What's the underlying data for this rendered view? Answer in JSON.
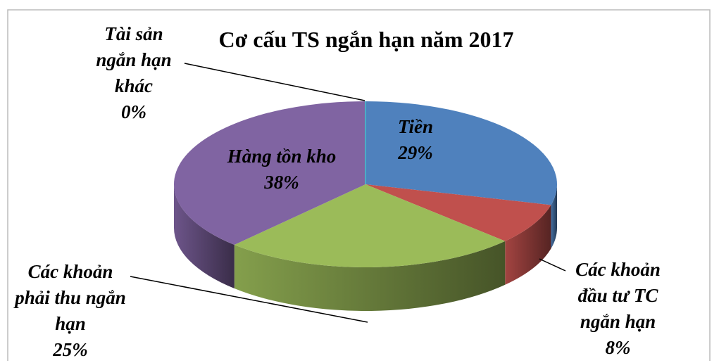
{
  "chart_data": {
    "type": "pie",
    "title": "Cơ cấu TS ngắn hạn năm 2017",
    "categories": [
      "Tiền",
      "Các khoản đầu tư TC ngắn hạn",
      "Các khoản phải thu ngắn hạn",
      "Hàng tồn kho",
      "Tài sản ngắn hạn khác"
    ],
    "values": [
      29,
      8,
      25,
      38,
      0
    ],
    "value_labels": [
      "29%",
      "8%",
      "25%",
      "38%",
      "0%"
    ],
    "colors": [
      "#4f81bd",
      "#c0504d",
      "#9bbb59",
      "#8064a2",
      "#4bacc6"
    ]
  }
}
